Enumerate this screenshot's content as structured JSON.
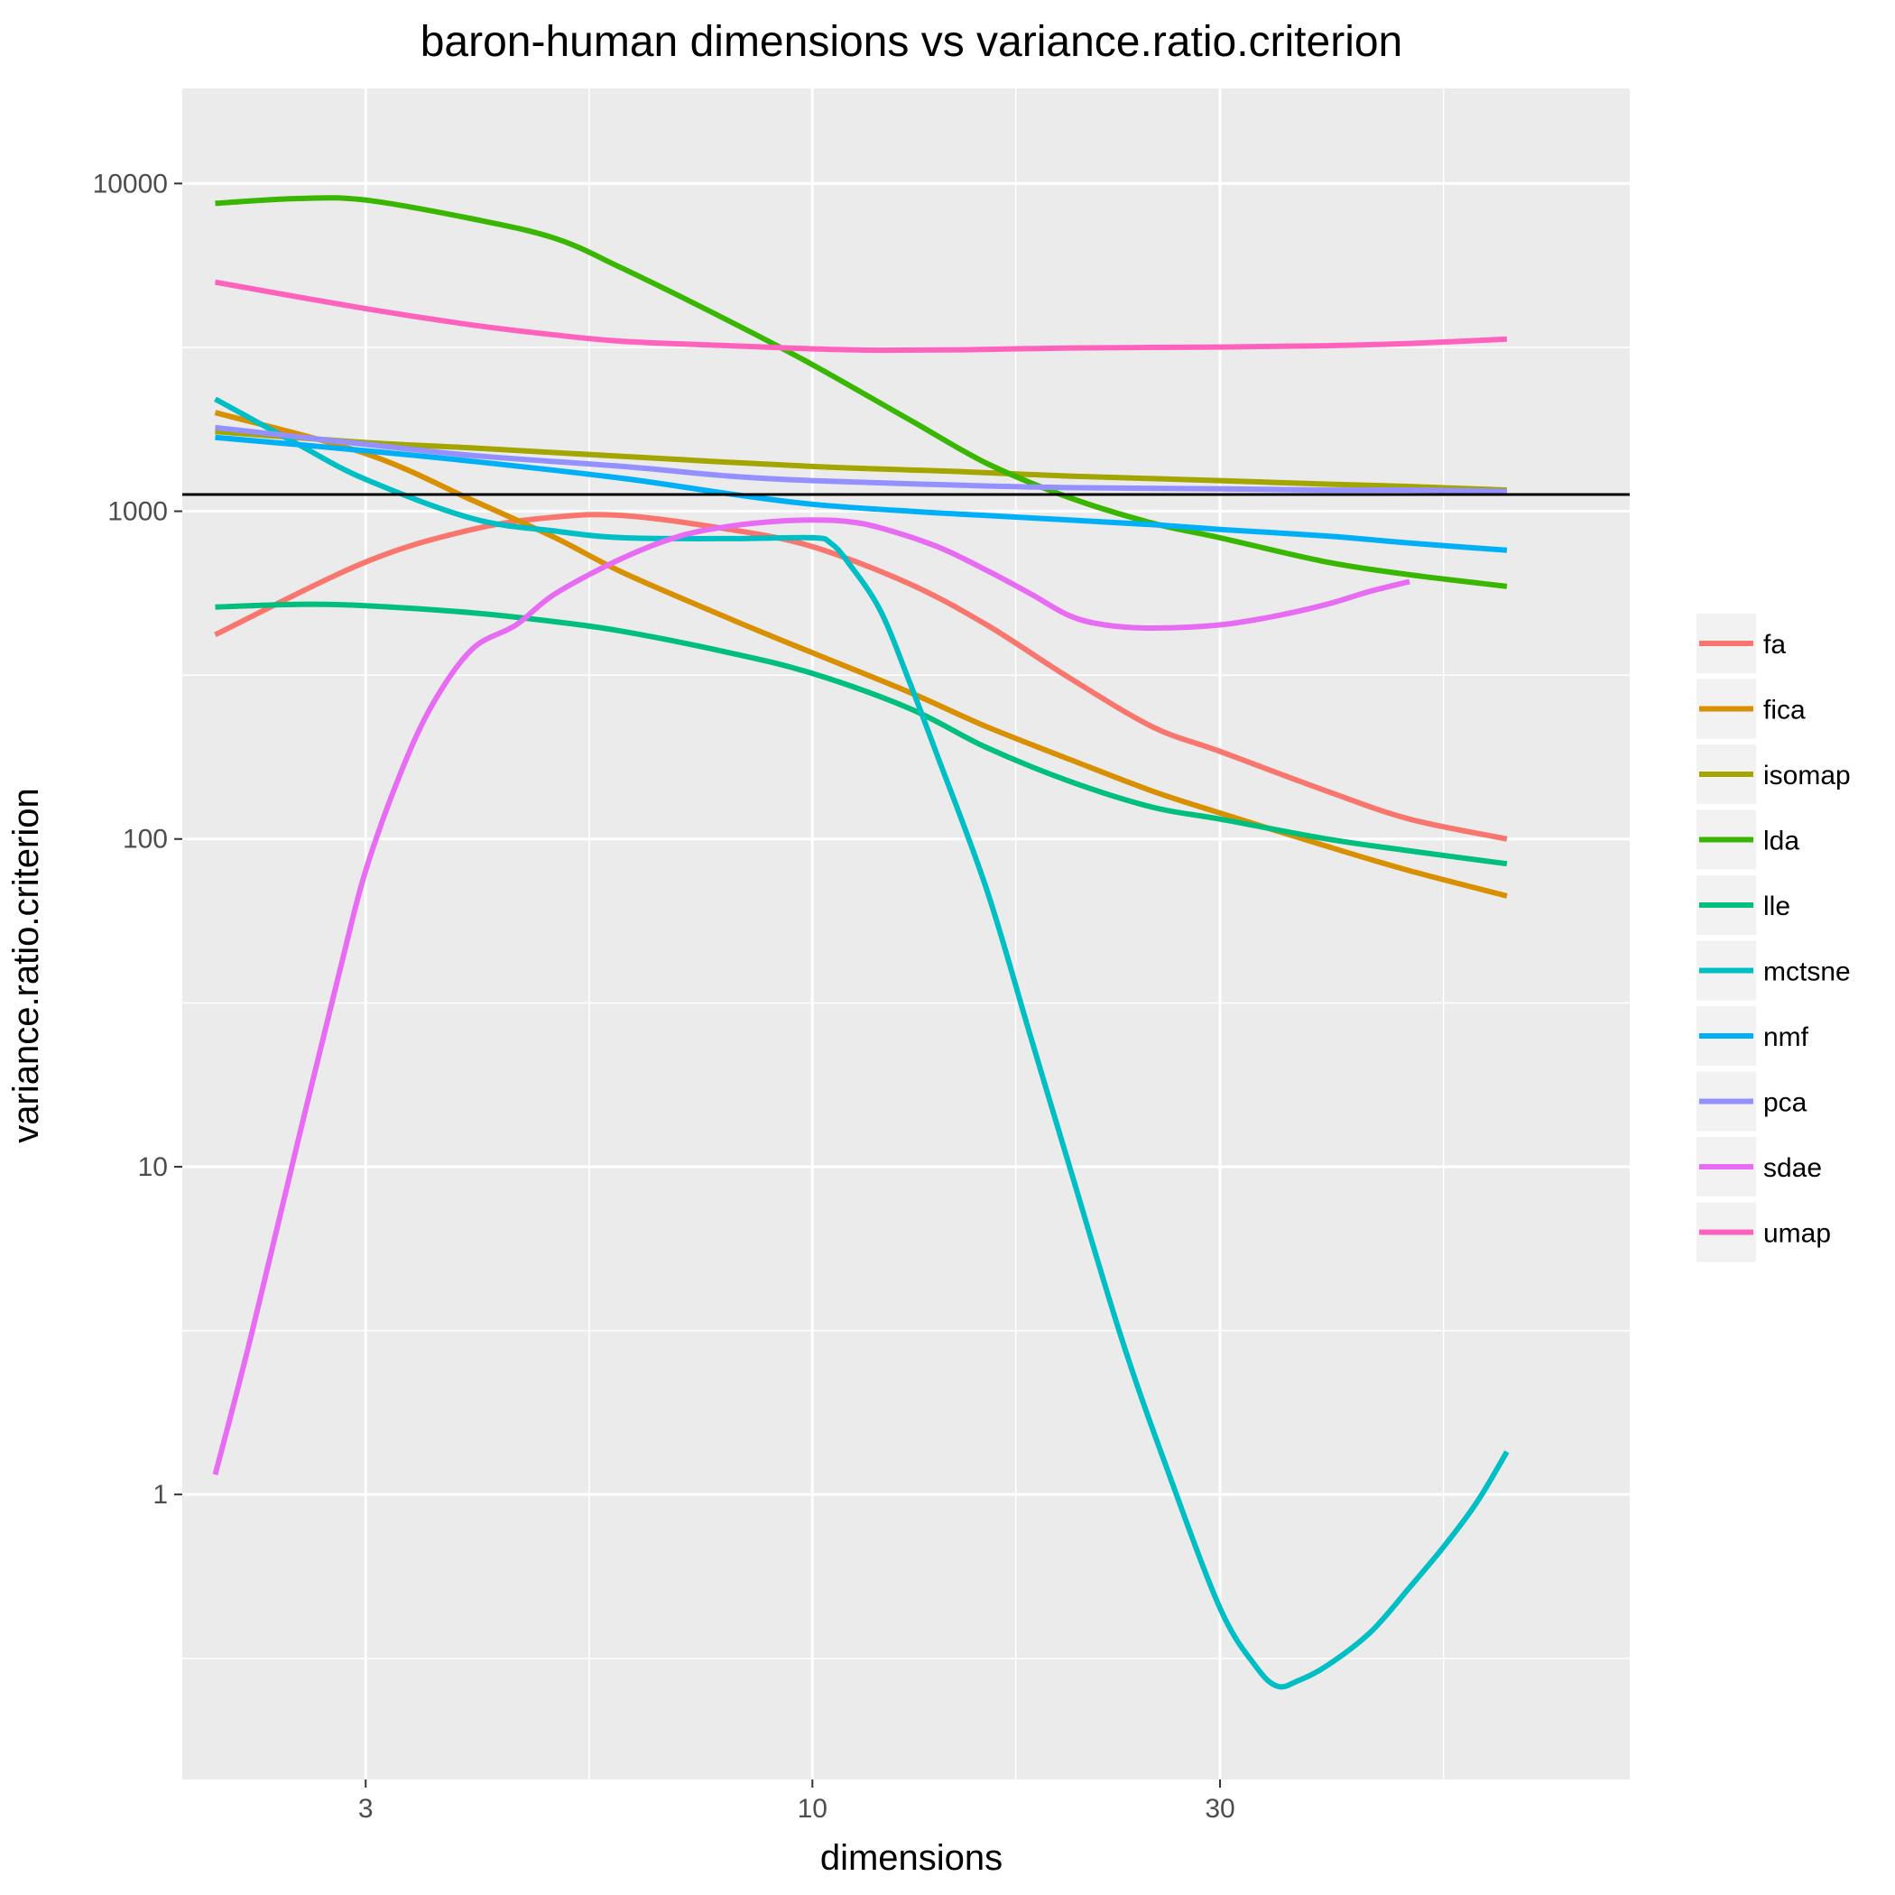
{
  "chart_data": {
    "type": "line",
    "title": "baron-human dimensions vs variance.ratio.criterion",
    "xlabel": "dimensions",
    "ylabel": "variance.ratio.criterion",
    "xscale": "log",
    "yscale": "log",
    "xlim": [
      1.83,
      90.5
    ],
    "ylim": [
      0.135,
      19500
    ],
    "xticks": [
      {
        "value": 3,
        "label": "3"
      },
      {
        "value": 10,
        "label": "10"
      },
      {
        "value": 30,
        "label": "30"
      }
    ],
    "xminor": [
      5.48,
      17.3,
      54.8
    ],
    "yticks": [
      {
        "value": 1,
        "label": "1"
      },
      {
        "value": 10,
        "label": "10"
      },
      {
        "value": 100,
        "label": "100"
      },
      {
        "value": 1000,
        "label": "1000"
      },
      {
        "value": 10000,
        "label": "10000"
      }
    ],
    "yminor": [
      0.316,
      3.16,
      31.6,
      316,
      3162
    ],
    "reference_line": {
      "y": 1125,
      "color": "#000000"
    },
    "background": "#EBEBEB",
    "grid": true,
    "legend_position": "right",
    "series": [
      {
        "name": "fa",
        "color": "#F8766D",
        "points": [
          [
            2,
            420
          ],
          [
            3,
            700
          ],
          [
            4,
            880
          ],
          [
            5,
            960
          ],
          [
            6,
            970
          ],
          [
            8,
            880
          ],
          [
            10,
            780
          ],
          [
            13,
            600
          ],
          [
            16,
            450
          ],
          [
            20,
            310
          ],
          [
            25,
            220
          ],
          [
            30,
            185
          ],
          [
            40,
            140
          ],
          [
            50,
            115
          ],
          [
            65,
            100
          ]
        ]
      },
      {
        "name": "fica",
        "color": "#D89000",
        "points": [
          [
            2,
            2000
          ],
          [
            3,
            1500
          ],
          [
            4,
            1080
          ],
          [
            5,
            830
          ],
          [
            6,
            650
          ],
          [
            8,
            470
          ],
          [
            10,
            370
          ],
          [
            13,
            280
          ],
          [
            16,
            220
          ],
          [
            20,
            175
          ],
          [
            25,
            140
          ],
          [
            30,
            120
          ],
          [
            40,
            95
          ],
          [
            50,
            80
          ],
          [
            65,
            67
          ]
        ]
      },
      {
        "name": "isomap",
        "color": "#A3A500",
        "points": [
          [
            2,
            1750
          ],
          [
            3,
            1620
          ],
          [
            4,
            1560
          ],
          [
            6,
            1470
          ],
          [
            10,
            1370
          ],
          [
            15,
            1320
          ],
          [
            20,
            1280
          ],
          [
            30,
            1240
          ],
          [
            40,
            1210
          ],
          [
            50,
            1190
          ],
          [
            65,
            1160
          ]
        ]
      },
      {
        "name": "lda",
        "color": "#39B600",
        "points": [
          [
            2,
            8700
          ],
          [
            2.5,
            9000
          ],
          [
            3,
            8900
          ],
          [
            4,
            7800
          ],
          [
            5,
            6800
          ],
          [
            6,
            5500
          ],
          [
            8,
            3800
          ],
          [
            10,
            2800
          ],
          [
            13,
            1900
          ],
          [
            16,
            1400
          ],
          [
            20,
            1100
          ],
          [
            25,
            920
          ],
          [
            30,
            830
          ],
          [
            40,
            700
          ],
          [
            50,
            640
          ],
          [
            65,
            590
          ]
        ]
      },
      {
        "name": "lle",
        "color": "#00BF7D",
        "points": [
          [
            2,
            510
          ],
          [
            2.5,
            520
          ],
          [
            3,
            515
          ],
          [
            4,
            490
          ],
          [
            5,
            460
          ],
          [
            6,
            430
          ],
          [
            8,
            370
          ],
          [
            10,
            320
          ],
          [
            13,
            250
          ],
          [
            16,
            190
          ],
          [
            20,
            150
          ],
          [
            25,
            125
          ],
          [
            30,
            115
          ],
          [
            40,
            100
          ],
          [
            50,
            92
          ],
          [
            65,
            84
          ]
        ]
      },
      {
        "name": "mctsne",
        "color": "#00BFC4",
        "points": [
          [
            2,
            2200
          ],
          [
            2.5,
            1600
          ],
          [
            3,
            1250
          ],
          [
            4,
            950
          ],
          [
            5,
            870
          ],
          [
            6,
            830
          ],
          [
            8,
            825
          ],
          [
            10,
            830
          ],
          [
            10.5,
            800
          ],
          [
            11,
            700
          ],
          [
            12,
            500
          ],
          [
            13,
            300
          ],
          [
            14,
            180
          ],
          [
            16,
            70
          ],
          [
            18,
            25
          ],
          [
            20,
            10
          ],
          [
            23,
            3
          ],
          [
            26,
            1.2
          ],
          [
            30,
            0.45
          ],
          [
            33,
            0.3
          ],
          [
            35,
            0.26
          ],
          [
            37,
            0.27
          ],
          [
            40,
            0.3
          ],
          [
            45,
            0.38
          ],
          [
            50,
            0.52
          ],
          [
            55,
            0.7
          ],
          [
            60,
            0.95
          ],
          [
            65,
            1.35
          ]
        ]
      },
      {
        "name": "nmf",
        "color": "#00B0F6",
        "points": [
          [
            2,
            1680
          ],
          [
            3,
            1530
          ],
          [
            4,
            1420
          ],
          [
            6,
            1260
          ],
          [
            8,
            1130
          ],
          [
            10,
            1050
          ],
          [
            13,
            1000
          ],
          [
            16,
            970
          ],
          [
            20,
            940
          ],
          [
            25,
            910
          ],
          [
            30,
            880
          ],
          [
            40,
            840
          ],
          [
            50,
            800
          ],
          [
            65,
            760
          ]
        ]
      },
      {
        "name": "pca",
        "color": "#9590FF",
        "points": [
          [
            2,
            1800
          ],
          [
            3,
            1600
          ],
          [
            4,
            1480
          ],
          [
            6,
            1370
          ],
          [
            8,
            1280
          ],
          [
            10,
            1240
          ],
          [
            15,
            1200
          ],
          [
            20,
            1180
          ],
          [
            30,
            1170
          ],
          [
            40,
            1160
          ],
          [
            50,
            1160
          ],
          [
            65,
            1150
          ]
        ]
      },
      {
        "name": "sdae",
        "color": "#E76BF3",
        "points": [
          [
            2,
            1.15
          ],
          [
            2.2,
            3
          ],
          [
            2.5,
            12
          ],
          [
            2.8,
            40
          ],
          [
            3,
            80
          ],
          [
            3.3,
            160
          ],
          [
            3.6,
            260
          ],
          [
            4,
            380
          ],
          [
            4.5,
            450
          ],
          [
            5,
            560
          ],
          [
            6,
            720
          ],
          [
            7,
            840
          ],
          [
            8,
            900
          ],
          [
            9,
            930
          ],
          [
            10,
            940
          ],
          [
            11,
            930
          ],
          [
            12,
            890
          ],
          [
            14,
            780
          ],
          [
            16,
            660
          ],
          [
            18,
            560
          ],
          [
            20,
            480
          ],
          [
            22,
            450
          ],
          [
            25,
            440
          ],
          [
            30,
            450
          ],
          [
            35,
            480
          ],
          [
            40,
            520
          ],
          [
            45,
            570
          ],
          [
            50,
            610
          ]
        ]
      },
      {
        "name": "umap",
        "color": "#FF62BC",
        "points": [
          [
            2,
            5000
          ],
          [
            3,
            4150
          ],
          [
            4,
            3700
          ],
          [
            5,
            3450
          ],
          [
            6,
            3300
          ],
          [
            8,
            3200
          ],
          [
            10,
            3130
          ],
          [
            12,
            3100
          ],
          [
            15,
            3110
          ],
          [
            20,
            3150
          ],
          [
            30,
            3170
          ],
          [
            40,
            3200
          ],
          [
            50,
            3250
          ],
          [
            65,
            3350
          ]
        ]
      }
    ]
  }
}
